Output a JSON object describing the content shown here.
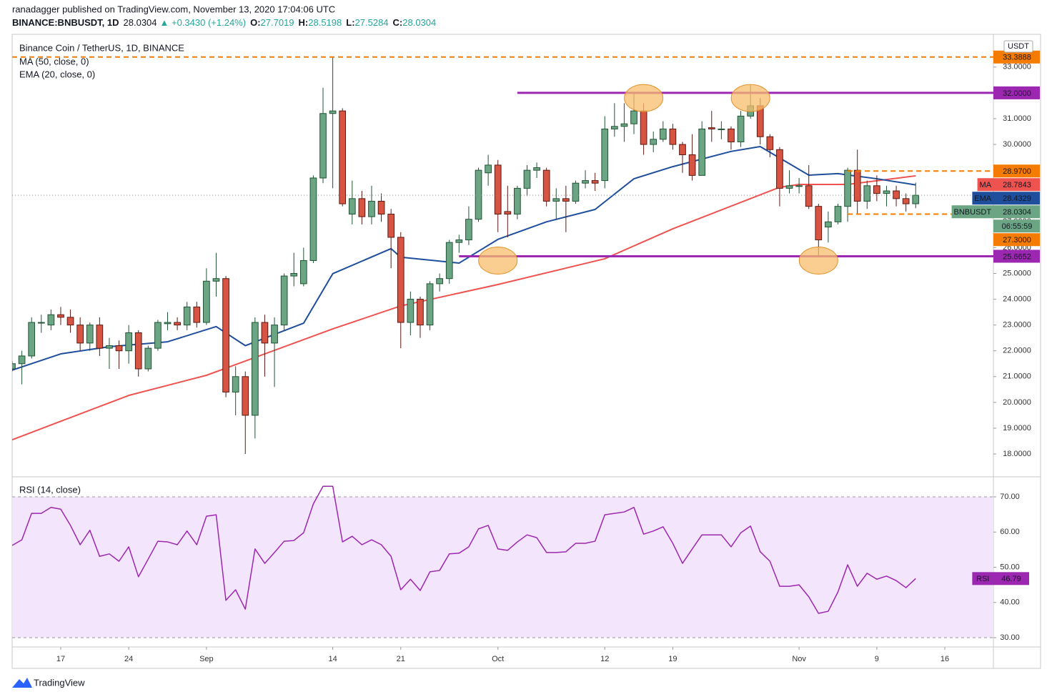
{
  "header": {
    "publisher": "ranadagger published on TradingView.com, November 13, 2020 17:04:06 UTC",
    "symbol": "BINANCE:BNBUSDT, 1D",
    "change": "▲ +0.3430 (+1.24%)",
    "o": "O:",
    "h": "H:",
    "l": "L:",
    "c": "C:"
  },
  "footer": "TradingView",
  "chart_data": {
    "type": "candlestick",
    "title": "Binance Coin / TetherUS, 1D, BINANCE",
    "currency": "USDT",
    "tag": "BNBUSDT",
    "countdown": "06:55:59",
    "up_color": "#6ba583",
    "down_color": "#d75442",
    "x": [
      "2020-08-12",
      "2020-08-13",
      "2020-08-14",
      "2020-08-15",
      "2020-08-16",
      "2020-08-17",
      "2020-08-18",
      "2020-08-19",
      "2020-08-20",
      "2020-08-21",
      "2020-08-22",
      "2020-08-23",
      "2020-08-24",
      "2020-08-25",
      "2020-08-26",
      "2020-08-27",
      "2020-08-28",
      "2020-08-29",
      "2020-08-30",
      "2020-08-31",
      "2020-09-01",
      "2020-09-02",
      "2020-09-03",
      "2020-09-04",
      "2020-09-05",
      "2020-09-06",
      "2020-09-07",
      "2020-09-08",
      "2020-09-09",
      "2020-09-10",
      "2020-09-11",
      "2020-09-12",
      "2020-09-13",
      "2020-09-14",
      "2020-09-15",
      "2020-09-16",
      "2020-09-17",
      "2020-09-18",
      "2020-09-19",
      "2020-09-20",
      "2020-09-21",
      "2020-09-22",
      "2020-09-23",
      "2020-09-24",
      "2020-09-25",
      "2020-09-26",
      "2020-09-27",
      "2020-09-28",
      "2020-09-29",
      "2020-09-30",
      "2020-10-01",
      "2020-10-02",
      "2020-10-03",
      "2020-10-04",
      "2020-10-05",
      "2020-10-06",
      "2020-10-07",
      "2020-10-08",
      "2020-10-09",
      "2020-10-10",
      "2020-10-11",
      "2020-10-12",
      "2020-10-13",
      "2020-10-14",
      "2020-10-15",
      "2020-10-16",
      "2020-10-17",
      "2020-10-18",
      "2020-10-19",
      "2020-10-20",
      "2020-10-21",
      "2020-10-22",
      "2020-10-23",
      "2020-10-24",
      "2020-10-25",
      "2020-10-26",
      "2020-10-27",
      "2020-10-28",
      "2020-10-29",
      "2020-10-30",
      "2020-10-31",
      "2020-11-01",
      "2020-11-02",
      "2020-11-03",
      "2020-11-04",
      "2020-11-05",
      "2020-11-06",
      "2020-11-07",
      "2020-11-08",
      "2020-11-09",
      "2020-11-10",
      "2020-11-11",
      "2020-11-12",
      "2020-11-13"
    ],
    "open": [
      21.3,
      21.5,
      21.8,
      23.1,
      23.0,
      23.4,
      23.3,
      23.0,
      22.3,
      23.0,
      22.1,
      22.2,
      22.0,
      22.7,
      21.3,
      22.1,
      23.05,
      23.1,
      23.0,
      23.7,
      23.1,
      24.7,
      24.8,
      20.4,
      21.0,
      19.5,
      23.1,
      22.3,
      23.0,
      24.9,
      24.6,
      25.5,
      28.7,
      31.2,
      31.3,
      27.3,
      27.9,
      27.2,
      27.8,
      27.3,
      26.4,
      23.1,
      24.0,
      23.0,
      24.6,
      24.8,
      26.2,
      26.3,
      27.1,
      28.9,
      29.2,
      27.4,
      27.3,
      28.3,
      29.0,
      29.0,
      27.8,
      27.9,
      27.8,
      28.5,
      28.6,
      28.6,
      30.6,
      30.7,
      30.8,
      31.3,
      30.0,
      30.2,
      30.6,
      30.0,
      29.6,
      28.8,
      30.65,
      30.6,
      30.6,
      30.1,
      31.1,
      31.5,
      30.3,
      29.8,
      28.3,
      28.4,
      28.4,
      27.6,
      26.8,
      27.0,
      27.6,
      29.0,
      27.8,
      28.4,
      28.1,
      28.2,
      27.9,
      27.7019
    ],
    "high": [
      21.6,
      22.0,
      23.3,
      23.4,
      23.6,
      23.7,
      23.6,
      23.3,
      23.1,
      23.3,
      22.5,
      22.4,
      23.0,
      22.8,
      22.2,
      23.2,
      23.5,
      23.3,
      23.9,
      23.9,
      25.2,
      25.8,
      24.9,
      21.4,
      21.2,
      23.3,
      23.4,
      23.3,
      25.0,
      25.8,
      26.0,
      28.8,
      32.2,
      33.39,
      31.4,
      28.6,
      28.2,
      28.4,
      28.1,
      27.5,
      26.6,
      24.3,
      24.1,
      24.7,
      25.0,
      26.3,
      26.5,
      27.6,
      29.1,
      29.6,
      29.4,
      28.4,
      28.4,
      29.2,
      29.3,
      29.1,
      28.3,
      28.4,
      28.6,
      29.0,
      28.9,
      31.1,
      31.6,
      31.6,
      32.0,
      31.6,
      30.5,
      30.9,
      30.8,
      30.1,
      30.4,
      30.9,
      31.3,
      30.9,
      30.7,
      31.3,
      32.3,
      31.8,
      30.4,
      29.9,
      29.0,
      28.7,
      29.2,
      27.7,
      27.4,
      27.7,
      29.1,
      29.8,
      28.6,
      28.8,
      28.4,
      28.4,
      28.1,
      28.5198
    ],
    "low": [
      21.2,
      20.7,
      21.7,
      22.7,
      22.8,
      23.0,
      22.7,
      22.0,
      22.0,
      21.8,
      21.3,
      21.3,
      21.5,
      21.0,
      21.2,
      22.0,
      22.8,
      22.8,
      22.8,
      22.9,
      23.0,
      24.1,
      20.2,
      19.5,
      18.0,
      18.6,
      21.0,
      20.6,
      22.8,
      24.5,
      24.5,
      25.4,
      28.5,
      28.3,
      27.6,
      26.9,
      26.9,
      26.9,
      27.0,
      25.2,
      22.1,
      22.6,
      22.5,
      22.8,
      24.3,
      24.6,
      25.8,
      26.1,
      27.0,
      28.4,
      26.6,
      26.4,
      27.1,
      28.0,
      28.7,
      27.6,
      27.1,
      26.6,
      27.7,
      28.3,
      28.2,
      28.3,
      30.3,
      30.1,
      30.4,
      29.6,
      29.7,
      30.1,
      29.8,
      28.9,
      28.6,
      28.8,
      30.1,
      30.2,
      29.8,
      29.9,
      31.0,
      30.0,
      29.5,
      27.6,
      28.1,
      28.1,
      27.5,
      25.7,
      26.2,
      26.9,
      27.0,
      27.3,
      27.5,
      27.8,
      27.6,
      27.6,
      27.4,
      27.5284
    ],
    "close": [
      21.5,
      21.8,
      23.1,
      23.1,
      23.4,
      23.3,
      23.0,
      22.3,
      23.0,
      22.1,
      22.2,
      22.0,
      22.7,
      21.3,
      22.1,
      23.1,
      23.1,
      23.0,
      23.7,
      23.1,
      24.7,
      24.8,
      20.4,
      21.0,
      19.5,
      23.1,
      22.3,
      23.0,
      24.9,
      25.0,
      25.5,
      28.7,
      31.2,
      31.3,
      27.7,
      27.9,
      27.2,
      27.8,
      27.3,
      26.4,
      23.1,
      24.0,
      23.0,
      24.6,
      24.8,
      26.2,
      26.3,
      27.1,
      29.0,
      29.2,
      27.3,
      27.3,
      28.3,
      29.0,
      29.1,
      27.8,
      27.9,
      27.8,
      28.5,
      28.6,
      28.5,
      30.6,
      30.7,
      30.8,
      31.3,
      30.0,
      30.2,
      30.6,
      30.0,
      29.6,
      28.8,
      30.6,
      30.6,
      30.6,
      30.1,
      31.1,
      31.5,
      30.3,
      29.8,
      28.3,
      28.4,
      28.4,
      27.6,
      26.3,
      27.0,
      27.6,
      29.0,
      27.8,
      28.4,
      28.1,
      28.2,
      27.9,
      27.7,
      28.0304
    ],
    "xlim": [
      "2020-08-12",
      "2020-11-21"
    ],
    "xticks": [
      {
        "value": "2020-08-17",
        "label": "17"
      },
      {
        "value": "2020-08-24",
        "label": "24"
      },
      {
        "value": "2020-09-01",
        "label": "Sep"
      },
      {
        "value": "2020-09-14",
        "label": "14"
      },
      {
        "value": "2020-09-21",
        "label": "21"
      },
      {
        "value": "2020-10-01",
        "label": "Oct"
      },
      {
        "value": "2020-10-12",
        "label": "12"
      },
      {
        "value": "2020-10-19",
        "label": "19"
      },
      {
        "value": "2020-11-01",
        "label": "Nov"
      },
      {
        "value": "2020-11-09",
        "label": "9"
      },
      {
        "value": "2020-11-16",
        "label": "16"
      }
    ],
    "ylim": [
      17.17,
      34.27
    ],
    "yticks": [
      {
        "value": 18,
        "label": "18.0000"
      },
      {
        "value": 19,
        "label": "19.0000"
      },
      {
        "value": 20,
        "label": "20.0000"
      },
      {
        "value": 21,
        "label": "21.0000"
      },
      {
        "value": 22,
        "label": "22.0000"
      },
      {
        "value": 23,
        "label": "23.0000"
      },
      {
        "value": 24,
        "label": "24.0000"
      },
      {
        "value": 25,
        "label": "25.0000"
      },
      {
        "value": 26,
        "label": "26.0000"
      },
      {
        "value": 27,
        "label": "27.0000"
      },
      {
        "value": 28,
        "label": "28.0000"
      },
      {
        "value": 29,
        "label": "29.0000"
      },
      {
        "value": 30,
        "label": "30.0000"
      },
      {
        "value": 31,
        "label": "31.0000"
      },
      {
        "value": 32,
        "label": "32.0000"
      },
      {
        "value": 33,
        "label": "33.0000"
      }
    ],
    "grid": false,
    "overlays": [
      {
        "name": "MA (50, close, 0)",
        "tag": "MA",
        "color": "#ef5350",
        "x": [
          "2020-08-12",
          "2020-08-24",
          "2020-09-01",
          "2020-09-14",
          "2020-09-21",
          "2020-10-01",
          "2020-10-12",
          "2020-10-19",
          "2020-10-30",
          "2020-11-01",
          "2020-11-06",
          "2020-11-13"
        ],
        "values": [
          18.55,
          20.27,
          21.05,
          22.85,
          23.74,
          24.57,
          25.57,
          26.73,
          28.34,
          28.45,
          28.45,
          28.7843
        ]
      },
      {
        "name": "EMA (20, close, 0)",
        "tag": "EMA",
        "color": "#1f4e9c",
        "x": [
          "2020-08-12",
          "2020-08-17",
          "2020-08-22",
          "2020-08-28",
          "2020-09-02",
          "2020-09-05",
          "2020-09-11",
          "2020-09-14",
          "2020-09-20",
          "2020-09-21",
          "2020-09-27",
          "2020-10-01",
          "2020-10-06",
          "2020-10-11",
          "2020-10-15",
          "2020-10-19",
          "2020-10-25",
          "2020-10-28",
          "2020-11-02",
          "2020-11-05",
          "2020-11-09",
          "2020-11-13"
        ],
        "values": [
          21.25,
          21.88,
          22.16,
          22.35,
          22.94,
          22.2,
          23.07,
          24.99,
          25.96,
          25.63,
          25.4,
          26.32,
          27.0,
          27.48,
          28.67,
          29.14,
          29.73,
          29.92,
          28.81,
          28.87,
          28.67,
          28.4329
        ]
      }
    ],
    "levels": [
      {
        "value": 33.3888,
        "label": "33.3888",
        "color": "#f57c00",
        "dashed": true,
        "from": "2020-08-12"
      },
      {
        "value": 32,
        "label": "32.0000",
        "color": "#9c27b0",
        "dashed": false,
        "from": "2020-10-03"
      },
      {
        "value": 28.97,
        "label": "28.9700",
        "color": "#f57c00",
        "dashed": true,
        "from": "2020-11-06"
      },
      {
        "value": 27.3,
        "label": "27.3000",
        "color": "#f57c00",
        "dashed": true,
        "from": "2020-11-06"
      },
      {
        "value": 25.6652,
        "label": "25.6652",
        "color": "#9c27b0",
        "dashed": false,
        "from": "2020-09-27"
      }
    ],
    "highlights": [
      {
        "x": "2020-10-01",
        "y": 25.5
      },
      {
        "x": "2020-10-16",
        "y": 31.8
      },
      {
        "x": "2020-10-27",
        "y": 31.8
      },
      {
        "x": "2020-11-03",
        "y": 25.5
      }
    ],
    "rsi": {
      "type": "line",
      "title": "RSI (14, close)",
      "tag": "RSI",
      "color": "#9c27b0",
      "band": [
        30,
        70
      ],
      "band_color": "#f3e5fb",
      "ylim": [
        27.36,
        75.08
      ],
      "yticks": [
        {
          "value": 30,
          "label": "30.00"
        },
        {
          "value": 40,
          "label": "40.00"
        },
        {
          "value": 50,
          "label": "50.00"
        },
        {
          "value": 60,
          "label": "60.00"
        },
        {
          "value": 70,
          "label": "70.00"
        }
      ],
      "values": [
        56.2,
        57.8,
        65.3,
        65.3,
        67,
        66.5,
        61.9,
        56.4,
        60.5,
        53.1,
        53.8,
        51.7,
        55.8,
        47.3,
        52.3,
        57.4,
        57.2,
        56.4,
        60.3,
        56.4,
        64.5,
        64.9,
        40.6,
        43.6,
        38.1,
        55.2,
        51.1,
        54.2,
        57.4,
        57.6,
        59.8,
        68,
        73,
        73,
        57.2,
        58.8,
        56.4,
        57.8,
        56.4,
        53.1,
        43.6,
        46.6,
        43.4,
        48.7,
        49.1,
        53.8,
        54,
        55.8,
        60.9,
        61.9,
        55.2,
        54.8,
        57.2,
        59.2,
        58.4,
        54.2,
        54.2,
        54.4,
        56.8,
        56.8,
        57.4,
        64.9,
        65.3,
        65.7,
        67,
        59.4,
        60.3,
        61.5,
        56.8,
        51.1,
        55.2,
        59.2,
        59.2,
        59.2,
        55.8,
        59.8,
        61.7,
        54.4,
        51.7,
        44.6,
        44.6,
        45,
        41.6,
        36.9,
        37.5,
        43,
        50.7,
        44.6,
        48.3,
        46.6,
        47.5,
        46.2,
        44.2,
        46.79
      ]
    }
  }
}
